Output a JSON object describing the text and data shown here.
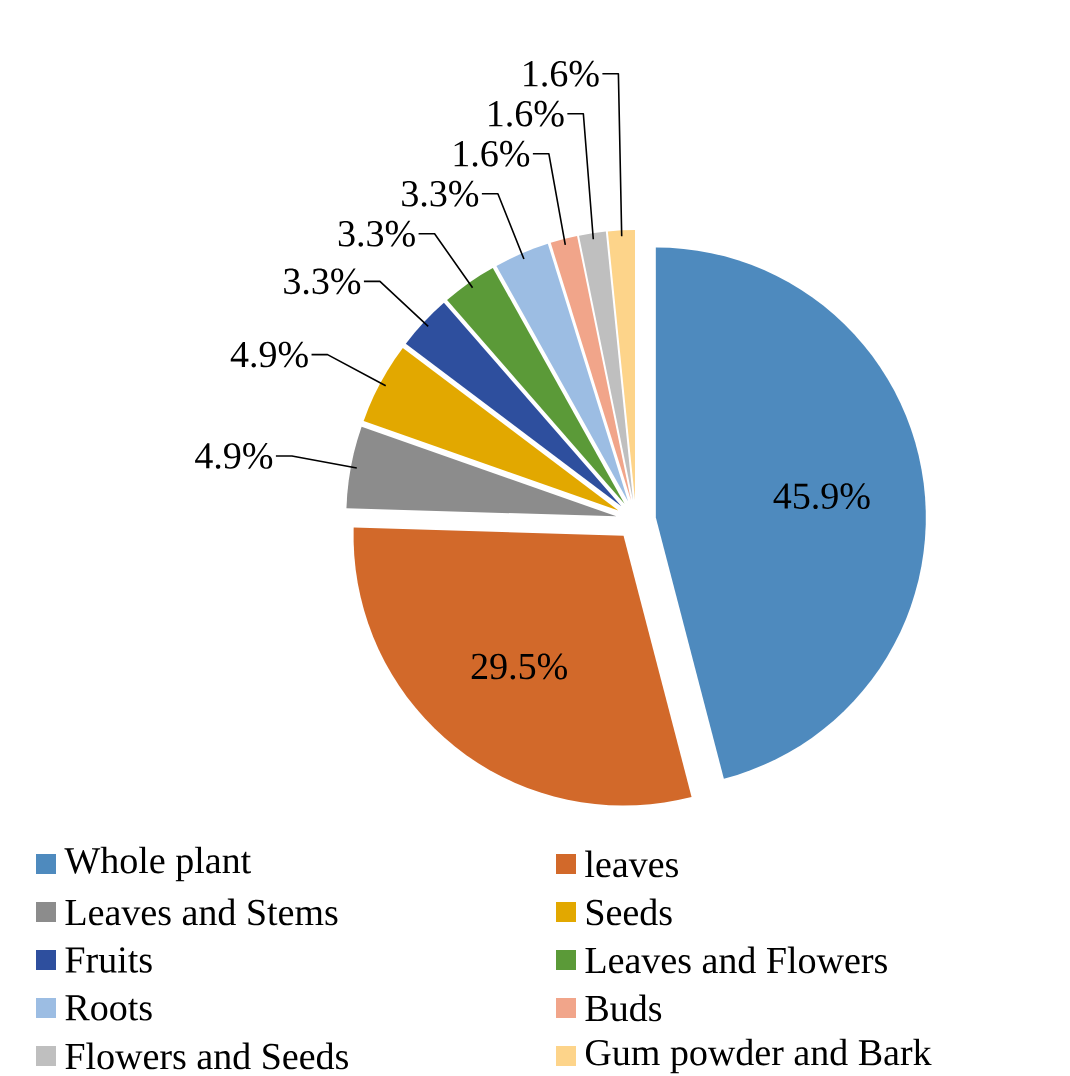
{
  "chart_data": {
    "type": "pie",
    "categories": [
      "Whole plant",
      "leaves",
      "Leaves and Stems",
      "Seeds",
      "Fruits",
      "Leaves and Flowers",
      "Roots",
      "Buds",
      "Flowers and Seeds",
      "Gum powder and Bark"
    ],
    "values": [
      45.9,
      29.5,
      4.9,
      4.9,
      3.3,
      3.3,
      3.3,
      1.6,
      1.6,
      1.6
    ],
    "colors": [
      "#4e8abe",
      "#d2692a",
      "#8c8c8c",
      "#e2a800",
      "#2e4f9e",
      "#5b9a38",
      "#9cbde3",
      "#f1a58a",
      "#bfbfbf",
      "#fdd48a"
    ],
    "value_labels": [
      "45.9%",
      "29.5%",
      "4.9%",
      "4.9%",
      "3.3%",
      "3.3%",
      "3.3%",
      "1.6%",
      "1.6%",
      "1.6%"
    ],
    "legend": "bottom"
  }
}
